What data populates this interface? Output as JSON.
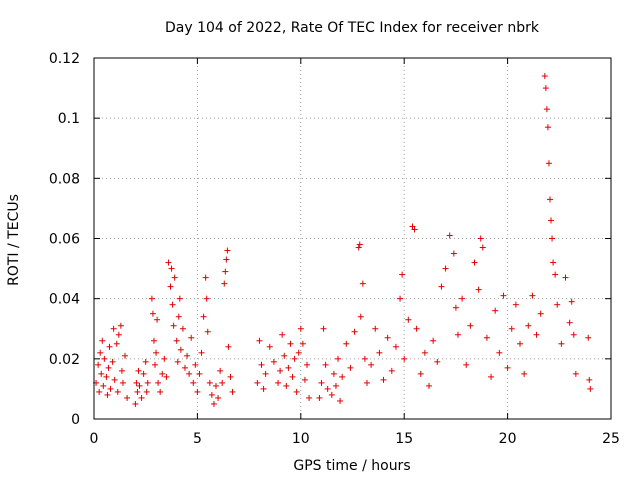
{
  "chart_data": {
    "type": "scatter",
    "title": "Day 104 of 2022, Rate Of TEC Index for receiver nbrk",
    "xlabel": "GPS time / hours",
    "ylabel": "ROTI / TECUs",
    "xlim": [
      0,
      25
    ],
    "ylim": [
      0,
      0.12
    ],
    "xticks": [
      0,
      5,
      10,
      15,
      20,
      25
    ],
    "xtick_labels": [
      "0",
      "5",
      "10",
      "15",
      "20",
      "25"
    ],
    "yticks": [
      0,
      0.02,
      0.04,
      0.06,
      0.08,
      0.1,
      0.12
    ],
    "ytick_labels": [
      "0",
      "0.02",
      "0.04",
      "0.06",
      "0.08",
      "0.1",
      "0.12"
    ],
    "grid": true,
    "marker": "plus",
    "series": [
      {
        "name": "ROTI",
        "color": "#e00000",
        "points": [
          [
            0.1,
            0.012
          ],
          [
            0.2,
            0.018
          ],
          [
            0.25,
            0.009
          ],
          [
            0.3,
            0.022
          ],
          [
            0.35,
            0.015
          ],
          [
            0.4,
            0.026
          ],
          [
            0.45,
            0.011
          ],
          [
            0.5,
            0.02
          ],
          [
            0.6,
            0.014
          ],
          [
            0.65,
            0.008
          ],
          [
            0.7,
            0.017
          ],
          [
            0.75,
            0.024
          ],
          [
            0.8,
            0.01
          ],
          [
            0.9,
            0.019
          ],
          [
            0.95,
            0.03
          ],
          [
            1.0,
            0.013
          ],
          [
            1.1,
            0.025
          ],
          [
            1.15,
            0.009
          ],
          [
            1.2,
            0.028
          ],
          [
            1.3,
            0.031
          ],
          [
            1.35,
            0.016
          ],
          [
            1.4,
            0.012
          ],
          [
            1.5,
            0.021
          ],
          [
            1.6,
            0.007
          ],
          [
            2.0,
            0.005
          ],
          [
            2.05,
            0.012
          ],
          [
            2.1,
            0.009
          ],
          [
            2.15,
            0.016
          ],
          [
            2.2,
            0.011
          ],
          [
            2.3,
            0.007
          ],
          [
            2.4,
            0.015
          ],
          [
            2.5,
            0.019
          ],
          [
            2.55,
            0.009
          ],
          [
            2.6,
            0.012
          ],
          [
            2.8,
            0.04
          ],
          [
            2.85,
            0.035
          ],
          [
            2.9,
            0.026
          ],
          [
            2.95,
            0.018
          ],
          [
            3.0,
            0.022
          ],
          [
            3.05,
            0.033
          ],
          [
            3.1,
            0.012
          ],
          [
            3.2,
            0.009
          ],
          [
            3.3,
            0.015
          ],
          [
            3.4,
            0.02
          ],
          [
            3.5,
            0.014
          ],
          [
            3.6,
            0.052
          ],
          [
            3.7,
            0.044
          ],
          [
            3.75,
            0.05
          ],
          [
            3.8,
            0.038
          ],
          [
            3.85,
            0.031
          ],
          [
            3.9,
            0.047
          ],
          [
            4.0,
            0.026
          ],
          [
            4.05,
            0.019
          ],
          [
            4.1,
            0.034
          ],
          [
            4.15,
            0.04
          ],
          [
            4.2,
            0.023
          ],
          [
            4.3,
            0.03
          ],
          [
            4.4,
            0.017
          ],
          [
            4.5,
            0.021
          ],
          [
            4.6,
            0.015
          ],
          [
            4.7,
            0.027
          ],
          [
            4.8,
            0.012
          ],
          [
            4.9,
            0.018
          ],
          [
            5.0,
            0.009
          ],
          [
            5.1,
            0.015
          ],
          [
            5.2,
            0.022
          ],
          [
            5.3,
            0.034
          ],
          [
            5.4,
            0.047
          ],
          [
            5.45,
            0.04
          ],
          [
            5.5,
            0.029
          ],
          [
            5.6,
            0.012
          ],
          [
            5.7,
            0.008
          ],
          [
            5.8,
            0.005
          ],
          [
            5.9,
            0.011
          ],
          [
            6.0,
            0.007
          ],
          [
            6.1,
            0.016
          ],
          [
            6.2,
            0.012
          ],
          [
            6.3,
            0.045
          ],
          [
            6.35,
            0.049
          ],
          [
            6.4,
            0.053
          ],
          [
            6.45,
            0.056
          ],
          [
            6.5,
            0.024
          ],
          [
            6.6,
            0.014
          ],
          [
            6.7,
            0.009
          ],
          [
            7.9,
            0.012
          ],
          [
            8.0,
            0.026
          ],
          [
            8.1,
            0.018
          ],
          [
            8.2,
            0.01
          ],
          [
            8.3,
            0.015
          ],
          [
            8.5,
            0.024
          ],
          [
            8.7,
            0.019
          ],
          [
            8.9,
            0.012
          ],
          [
            9.0,
            0.016
          ],
          [
            9.1,
            0.028
          ],
          [
            9.2,
            0.021
          ],
          [
            9.3,
            0.011
          ],
          [
            9.4,
            0.017
          ],
          [
            9.5,
            0.025
          ],
          [
            9.6,
            0.014
          ],
          [
            9.7,
            0.02
          ],
          [
            9.8,
            0.009
          ],
          [
            9.9,
            0.022
          ],
          [
            10.0,
            0.03
          ],
          [
            10.1,
            0.025
          ],
          [
            10.2,
            0.013
          ],
          [
            10.3,
            0.018
          ],
          [
            10.4,
            0.007
          ],
          [
            10.9,
            0.007
          ],
          [
            11.0,
            0.012
          ],
          [
            11.1,
            0.03
          ],
          [
            11.2,
            0.018
          ],
          [
            11.3,
            0.01
          ],
          [
            11.5,
            0.008
          ],
          [
            11.6,
            0.015
          ],
          [
            11.7,
            0.011
          ],
          [
            11.8,
            0.02
          ],
          [
            11.9,
            0.006
          ],
          [
            12.0,
            0.014
          ],
          [
            12.2,
            0.025
          ],
          [
            12.4,
            0.017
          ],
          [
            12.6,
            0.029
          ],
          [
            12.8,
            0.057
          ],
          [
            12.85,
            0.058
          ],
          [
            12.9,
            0.034
          ],
          [
            13.0,
            0.045
          ],
          [
            13.1,
            0.02
          ],
          [
            13.2,
            0.012
          ],
          [
            13.4,
            0.018
          ],
          [
            13.6,
            0.03
          ],
          [
            13.8,
            0.022
          ],
          [
            14.0,
            0.013
          ],
          [
            14.2,
            0.027
          ],
          [
            14.4,
            0.016
          ],
          [
            14.6,
            0.024
          ],
          [
            14.8,
            0.04
          ],
          [
            14.9,
            0.048
          ],
          [
            15.0,
            0.02
          ],
          [
            15.2,
            0.033
          ],
          [
            15.4,
            0.064
          ],
          [
            15.5,
            0.063
          ],
          [
            15.6,
            0.03
          ],
          [
            15.8,
            0.015
          ],
          [
            16.0,
            0.022
          ],
          [
            16.2,
            0.011
          ],
          [
            16.4,
            0.026
          ],
          [
            16.6,
            0.019
          ],
          [
            16.8,
            0.044
          ],
          [
            17.0,
            0.05
          ],
          [
            17.2,
            0.061
          ],
          [
            17.4,
            0.055
          ],
          [
            17.5,
            0.037
          ],
          [
            17.6,
            0.028
          ],
          [
            17.8,
            0.04
          ],
          [
            18.0,
            0.018
          ],
          [
            18.2,
            0.031
          ],
          [
            18.4,
            0.052
          ],
          [
            18.6,
            0.043
          ],
          [
            18.7,
            0.06
          ],
          [
            18.8,
            0.057
          ],
          [
            19.0,
            0.027
          ],
          [
            19.2,
            0.014
          ],
          [
            19.4,
            0.036
          ],
          [
            19.6,
            0.022
          ],
          [
            19.8,
            0.041
          ],
          [
            20.0,
            0.017
          ],
          [
            20.2,
            0.03
          ],
          [
            20.4,
            0.038
          ],
          [
            20.6,
            0.025
          ],
          [
            20.8,
            0.015
          ],
          [
            21.0,
            0.031
          ],
          [
            21.2,
            0.041
          ],
          [
            21.4,
            0.028
          ],
          [
            21.6,
            0.035
          ],
          [
            21.8,
            0.114
          ],
          [
            21.85,
            0.11
          ],
          [
            21.9,
            0.103
          ],
          [
            21.95,
            0.097
          ],
          [
            22.0,
            0.085
          ],
          [
            22.05,
            0.073
          ],
          [
            22.1,
            0.066
          ],
          [
            22.15,
            0.06
          ],
          [
            22.2,
            0.052
          ],
          [
            22.3,
            0.048
          ],
          [
            22.4,
            0.038
          ],
          [
            22.6,
            0.025
          ],
          [
            22.8,
            0.047
          ],
          [
            23.0,
            0.032
          ],
          [
            23.1,
            0.039
          ],
          [
            23.2,
            0.028
          ],
          [
            23.3,
            0.015
          ],
          [
            23.9,
            0.027
          ],
          [
            23.95,
            0.013
          ],
          [
            24.0,
            0.01
          ]
        ]
      }
    ]
  }
}
